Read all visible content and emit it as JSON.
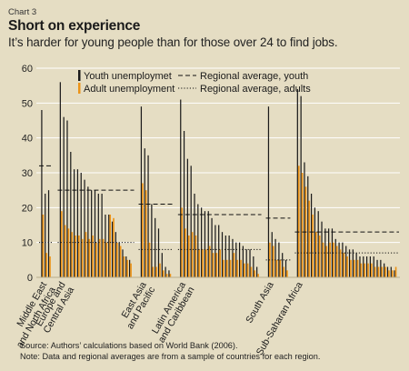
{
  "header": {
    "kicker": "Chart 3",
    "title": "Short on experience",
    "subtitle": "It’s harder for young people than for those over 24 to find jobs."
  },
  "footer": {
    "source": "Source: Authors’ calculations based on World Bank (2006).",
    "note": "Note: Data and regional averages are from a sample of countries for each region."
  },
  "colors": {
    "background": "#e5ddc3",
    "youth": "#1a1a1a",
    "adult": "#ec9418",
    "gridline": "#ffffff"
  },
  "chart_data": {
    "type": "bar",
    "ylim": [
      0,
      60
    ],
    "yticks": [
      0,
      10,
      20,
      30,
      40,
      50,
      60
    ],
    "grid": true,
    "legend": {
      "placement": "top",
      "entries": [
        {
          "label": "Youth unemploymet",
          "kind": "bar",
          "series": "youth"
        },
        {
          "label": "Adult unemployment",
          "kind": "bar",
          "series": "adult"
        },
        {
          "label": "Regional average, youth",
          "kind": "dashed"
        },
        {
          "label": "Regional average, adults",
          "kind": "dotted"
        }
      ]
    },
    "regions": [
      {
        "label_lines": [
          "Middle East",
          "and North Africa"
        ],
        "youth": [
          48,
          24,
          25
        ],
        "adult": [
          18,
          7,
          6
        ],
        "avg_youth": 32,
        "avg_adult": 10
      },
      {
        "label_lines": [
          "Europe and",
          "Central Asia"
        ],
        "youth": [
          56,
          46,
          45,
          36,
          31,
          31,
          30,
          28,
          26,
          25,
          25,
          24,
          24,
          18,
          18,
          16,
          13,
          10,
          8,
          6,
          5
        ],
        "adult": [
          19,
          15,
          14,
          13,
          12,
          12,
          11,
          13,
          11,
          12,
          10,
          11,
          11,
          10,
          18,
          17,
          10,
          9,
          6,
          5,
          4
        ],
        "avg_youth": 25,
        "avg_adult": 10
      },
      {
        "label_lines": [
          "East Asia",
          "and Pacific"
        ],
        "youth": [
          49,
          37,
          35,
          21,
          17,
          14,
          7,
          3,
          2
        ],
        "adult": [
          27,
          25,
          10,
          3,
          3,
          4,
          2,
          1,
          1
        ],
        "avg_youth": 21,
        "avg_adult": 8
      },
      {
        "label_lines": [
          "Latin America",
          "and Caribbean"
        ],
        "youth": [
          51,
          42,
          34,
          32,
          24,
          21,
          20,
          19,
          19,
          17,
          15,
          15,
          13,
          12,
          12,
          11,
          10,
          10,
          9,
          8,
          8,
          6,
          3
        ],
        "adult": [
          20,
          14,
          12,
          13,
          12,
          8,
          8,
          8,
          9,
          7,
          7,
          8,
          5,
          5,
          5,
          7,
          5,
          5,
          4,
          4,
          3,
          2,
          1
        ],
        "avg_youth": 18,
        "avg_adult": 8
      },
      {
        "label_lines": [
          "South Asia"
        ],
        "youth": [
          49,
          13,
          11,
          10,
          7,
          5
        ],
        "adult": [
          10,
          9,
          5,
          5,
          3,
          2
        ],
        "avg_youth": 17,
        "avg_adult": 5
      },
      {
        "label_lines": [
          "Sub-Saharan Africa"
        ],
        "youth": [
          54,
          52,
          33,
          29,
          24,
          20,
          19,
          16,
          14,
          14,
          14,
          11,
          10,
          10,
          9,
          8,
          8,
          7,
          6,
          6,
          6,
          6,
          6,
          5,
          5,
          4,
          3,
          3,
          2
        ],
        "adult": [
          32,
          30,
          26,
          22,
          18,
          13,
          12,
          10,
          9,
          10,
          10,
          9,
          8,
          7,
          6,
          5,
          5,
          5,
          4,
          4,
          4,
          4,
          3,
          3,
          3,
          3,
          2,
          2,
          3
        ],
        "avg_youth": 13,
        "avg_adult": 7
      }
    ]
  }
}
